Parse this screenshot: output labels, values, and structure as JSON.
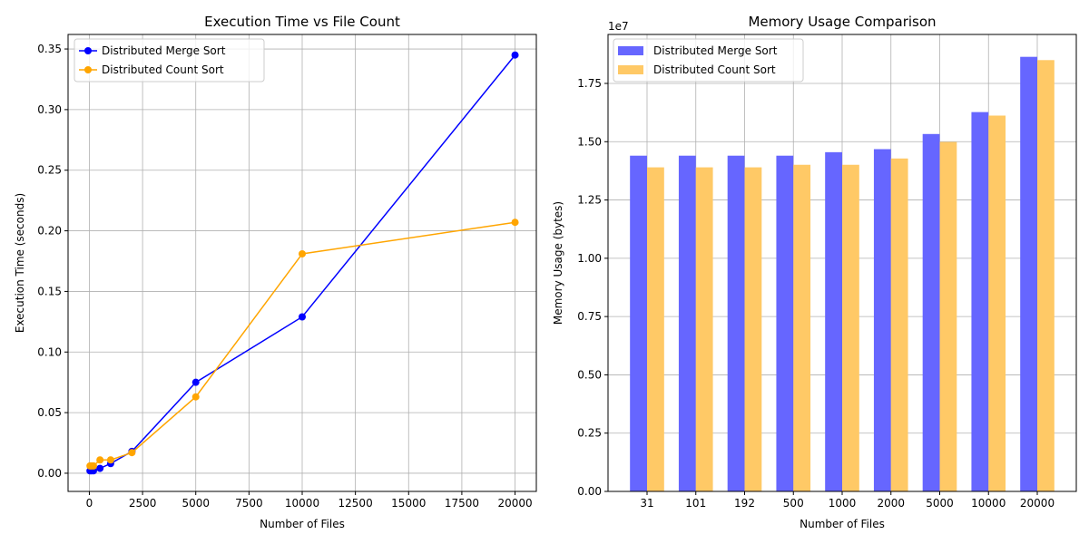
{
  "chart_data": [
    {
      "type": "line",
      "title": "Execution Time vs File Count",
      "xlabel": "Number of Files",
      "ylabel": "Execution Time (seconds)",
      "xlim": [
        -1000,
        21000
      ],
      "ylim": [
        -0.015,
        0.362
      ],
      "xticks": [
        0,
        2500,
        5000,
        7500,
        10000,
        12500,
        15000,
        17500,
        20000
      ],
      "yticks": [
        0.0,
        0.05,
        0.1,
        0.15,
        0.2,
        0.25,
        0.3,
        0.35
      ],
      "grid": true,
      "legend": "upper-left",
      "series": [
        {
          "name": "Distributed Merge Sort",
          "color": "#0000ff",
          "marker": "circle",
          "x": [
            31,
            101,
            192,
            500,
            1000,
            2000,
            5000,
            10000,
            20000
          ],
          "y": [
            0.002,
            0.002,
            0.002,
            0.004,
            0.008,
            0.018,
            0.075,
            0.129,
            0.345
          ]
        },
        {
          "name": "Distributed Count Sort",
          "color": "#ffa500",
          "marker": "circle",
          "x": [
            31,
            101,
            192,
            500,
            1000,
            2000,
            5000,
            10000,
            20000
          ],
          "y": [
            0.006,
            0.006,
            0.006,
            0.011,
            0.011,
            0.017,
            0.063,
            0.181,
            0.207
          ]
        }
      ]
    },
    {
      "type": "bar",
      "title": "Memory Usage Comparison",
      "xlabel": "Number of Files",
      "ylabel": "Memory Usage (bytes)",
      "exponent_label": "1e7",
      "categories": [
        "31",
        "101",
        "192",
        "500",
        "1000",
        "2000",
        "5000",
        "10000",
        "20000"
      ],
      "ylim": [
        0,
        19600000.0
      ],
      "yticks": [
        0,
        2500000,
        5000000,
        7500000,
        10000000,
        12500000,
        15000000,
        17500000
      ],
      "ytick_labels": [
        "0.00",
        "0.25",
        "0.50",
        "0.75",
        "1.00",
        "1.25",
        "1.50",
        "1.75"
      ],
      "grid": true,
      "legend": "upper-left",
      "series": [
        {
          "name": "Distributed Merge Sort",
          "color": "#6666ff",
          "values": [
            14400000,
            14400000,
            14400000,
            14400000,
            14550000,
            14680000,
            15330000,
            16270000,
            18640000
          ]
        },
        {
          "name": "Distributed Count Sort",
          "color": "#ffc966",
          "values": [
            13900000,
            13900000,
            13900000,
            14010000,
            14010000,
            14280000,
            14990000,
            16120000,
            18500000
          ]
        }
      ]
    }
  ]
}
